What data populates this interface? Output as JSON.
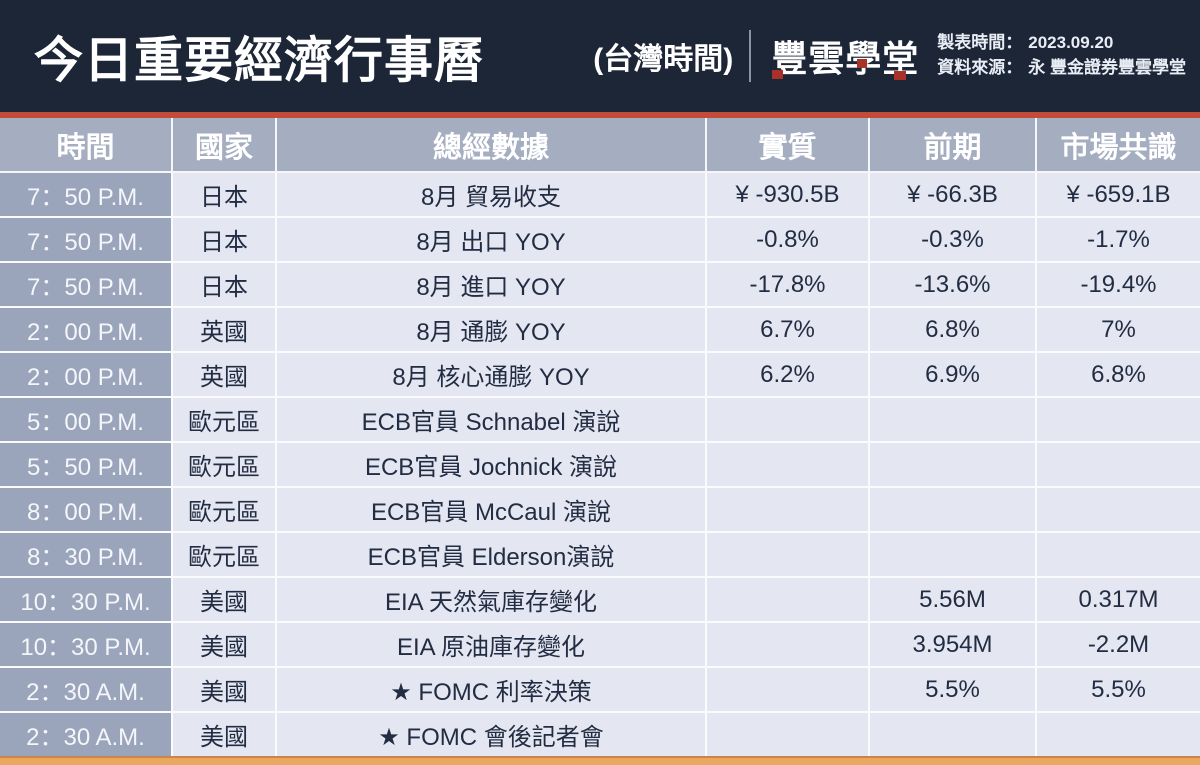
{
  "banner": {
    "title": "今日重要經濟行事曆",
    "timezone_note": "(台灣時間)",
    "logo_text": "豐雲學堂",
    "made_time_label": "製表時間：",
    "made_time_value": "2023.09.20",
    "source_label": "資料來源：",
    "source_value": "永 豐金證券豐雲學堂"
  },
  "colors": {
    "banner_bg": "#1d2637",
    "red_stripe": "#c24b39",
    "logo_accent_red": "#a8322a",
    "header_row_bg": "#a5adc1",
    "time_column_bg": "#9aa4ba",
    "body_bg": "#e4e7f1",
    "grid_line": "#fafbfd",
    "body_text": "#222c42",
    "bottom_bar": "#eaa85f"
  },
  "table": {
    "headers": [
      "時間",
      "國家",
      "總經數據",
      "實質",
      "前期",
      "市場共識"
    ],
    "rows": [
      {
        "time": "7：50 P.M.",
        "country": "日本",
        "event": "8月 貿易收支",
        "actual": "¥ -930.5B",
        "previous": "¥ -66.3B",
        "consensus": "¥ -659.1B"
      },
      {
        "time": "7：50 P.M.",
        "country": "日本",
        "event": "8月 出口 YOY",
        "actual": "-0.8%",
        "previous": "-0.3%",
        "consensus": "-1.7%"
      },
      {
        "time": "7：50 P.M.",
        "country": "日本",
        "event": "8月 進口 YOY",
        "actual": "-17.8%",
        "previous": "-13.6%",
        "consensus": "-19.4%"
      },
      {
        "time": "2：00 P.M.",
        "country": "英國",
        "event": "8月 通膨 YOY",
        "actual": "6.7%",
        "previous": "6.8%",
        "consensus": "7%"
      },
      {
        "time": "2：00 P.M.",
        "country": "英國",
        "event": "8月 核心通膨 YOY",
        "actual": "6.2%",
        "previous": "6.9%",
        "consensus": "6.8%"
      },
      {
        "time": "5：00 P.M.",
        "country": "歐元區",
        "event": "ECB官員 Schnabel 演說",
        "actual": "",
        "previous": "",
        "consensus": ""
      },
      {
        "time": "5：50 P.M.",
        "country": "歐元區",
        "event": "ECB官員 Jochnick 演說",
        "actual": "",
        "previous": "",
        "consensus": ""
      },
      {
        "time": "8：00 P.M.",
        "country": "歐元區",
        "event": "ECB官員 McCaul 演說",
        "actual": "",
        "previous": "",
        "consensus": ""
      },
      {
        "time": "8：30 P.M.",
        "country": "歐元區",
        "event": "ECB官員 Elderson演說",
        "actual": "",
        "previous": "",
        "consensus": ""
      },
      {
        "time": "10：30 P.M.",
        "country": "美國",
        "event": "EIA 天然氣庫存變化",
        "actual": "",
        "previous": "5.56M",
        "consensus": "0.317M"
      },
      {
        "time": "10：30 P.M.",
        "country": "美國",
        "event": "EIA 原油庫存變化",
        "actual": "",
        "previous": "3.954M",
        "consensus": "-2.2M"
      },
      {
        "time": "2：30 A.M.",
        "country": "美國",
        "event": "★ FOMC 利率決策",
        "actual": "",
        "previous": "5.5%",
        "consensus": "5.5%"
      },
      {
        "time": "2：30 A.M.",
        "country": "美國",
        "event": "★ FOMC 會後記者會",
        "actual": "",
        "previous": "",
        "consensus": ""
      }
    ]
  }
}
